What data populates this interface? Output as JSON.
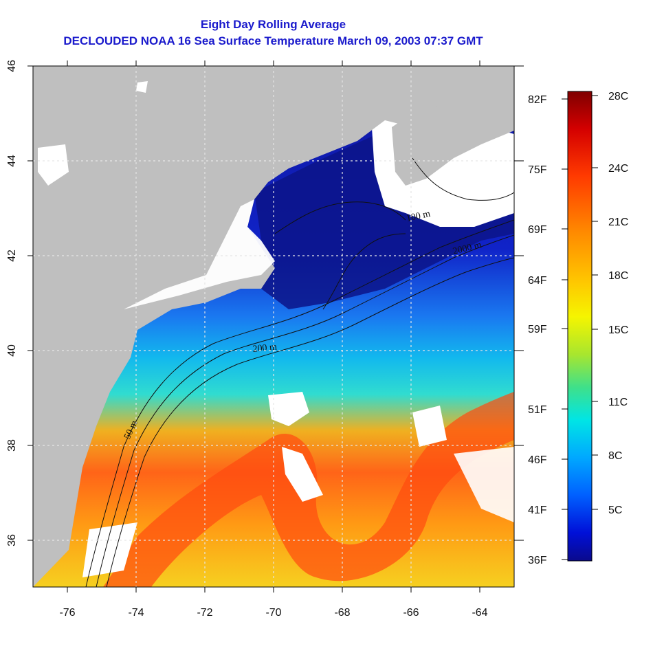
{
  "title": {
    "line1": "Eight Day Rolling Average",
    "line2": "DECLOUDED NOAA 16 Sea Surface Temperature March 09, 2003 07:37 GMT"
  },
  "map": {
    "x_ticks": [
      "-76",
      "-74",
      "-72",
      "-70",
      "-68",
      "-66",
      "-64"
    ],
    "y_ticks": [
      "36",
      "38",
      "40",
      "42",
      "44",
      "46"
    ],
    "contour_labels": [
      "50 m",
      "100 m",
      "200 m",
      "2000 m"
    ],
    "land_color": "#bfbfbf",
    "cloud_color": "#ffffff"
  },
  "colorbar": {
    "fahrenheit": [
      "82F",
      "75F",
      "69F",
      "64F",
      "59F",
      "51F",
      "46F",
      "41F",
      "36F"
    ],
    "celsius": [
      "28C",
      "24C",
      "21C",
      "18C",
      "15C",
      "11C",
      "8C",
      "5C"
    ],
    "colors": [
      "#7f0000",
      "#d40000",
      "#ff3a00",
      "#ff8a00",
      "#ffc400",
      "#f5f500",
      "#a8e62e",
      "#3fe08a",
      "#00e5e5",
      "#00a8ff",
      "#0060ff",
      "#0010d8",
      "#0a0a8c"
    ]
  }
}
